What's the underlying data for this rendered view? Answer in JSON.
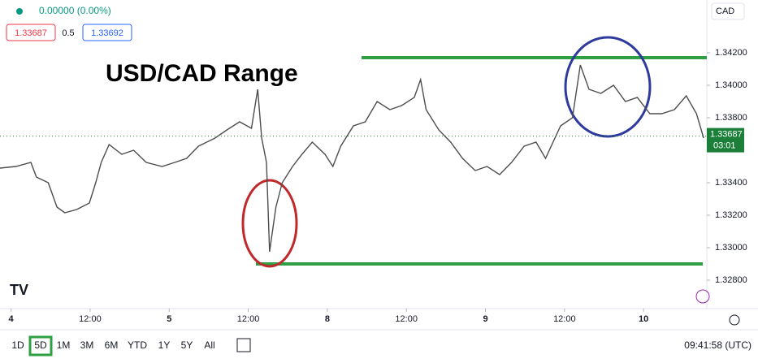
{
  "ui": {
    "change": "0.00000 (0.00%)",
    "bid": "1.33687",
    "spread": "0.5",
    "ask": "1.33692",
    "currency": "CAD",
    "countdown": "03:01",
    "timeframes": [
      "1D",
      "5D",
      "1M",
      "3M",
      "6M",
      "YTD",
      "1Y",
      "5Y",
      "All"
    ],
    "selected_timeframe": 1,
    "clock": "09:41:58 (UTC)"
  },
  "chart_data": {
    "type": "line",
    "title": "USD/CAD Range",
    "color": "#4d4d4d",
    "grid": false,
    "x": [
      -0.14,
      0.06,
      0.25,
      0.32,
      0.47,
      0.58,
      0.68,
      0.83,
      0.99,
      1.07,
      1.14,
      1.24,
      1.4,
      1.55,
      1.71,
      1.91,
      2.07,
      2.22,
      2.37,
      2.58,
      2.73,
      2.89,
      3.04,
      3.12,
      3.17,
      3.23,
      3.27,
      3.35,
      3.43,
      3.56,
      3.68,
      3.81,
      3.97,
      4.07,
      4.17,
      4.33,
      4.48,
      4.63,
      4.79,
      4.94,
      5.1,
      5.18,
      5.25,
      5.41,
      5.56,
      5.71,
      5.87,
      6.02,
      6.18,
      6.33,
      6.49,
      6.64,
      6.76,
      6.95,
      7.1,
      7.2,
      7.31,
      7.46,
      7.62,
      7.77,
      7.92,
      8.08,
      8.23,
      8.39,
      8.54,
      8.67,
      8.76
    ],
    "values": [
      1.3349,
      1.335,
      1.33525,
      1.33435,
      1.334,
      1.3325,
      1.33215,
      1.33235,
      1.33275,
      1.334,
      1.33525,
      1.33635,
      1.33575,
      1.336,
      1.33525,
      1.335,
      1.33525,
      1.3355,
      1.33625,
      1.33675,
      1.33725,
      1.33775,
      1.33735,
      1.33975,
      1.33675,
      1.33525,
      1.32975,
      1.3325,
      1.334,
      1.335,
      1.33575,
      1.3365,
      1.33575,
      1.335,
      1.33625,
      1.3375,
      1.33775,
      1.339,
      1.3385,
      1.33875,
      1.33925,
      1.34035,
      1.3385,
      1.33725,
      1.3365,
      1.3355,
      1.33475,
      1.335,
      1.3345,
      1.33525,
      1.33625,
      1.3365,
      1.3355,
      1.3375,
      1.338,
      1.34125,
      1.33975,
      1.3395,
      1.34,
      1.339,
      1.33925,
      1.33825,
      1.33825,
      1.3385,
      1.33935,
      1.33825,
      1.33675
    ],
    "current_price": 1.33687,
    "current_color": "#1b7f3a",
    "xlim": [
      -0.14,
      8.8
    ],
    "xticks": [
      {
        "value": 0,
        "label": "4"
      },
      {
        "value": 1,
        "label": "12:00"
      },
      {
        "value": 2,
        "label": "5"
      },
      {
        "value": 3,
        "label": "12:00"
      },
      {
        "value": 4,
        "label": "8"
      },
      {
        "value": 5,
        "label": "12:00"
      },
      {
        "value": 6,
        "label": "9"
      },
      {
        "value": 7,
        "label": "12:00"
      },
      {
        "value": 8,
        "label": "10"
      }
    ],
    "ylim": [
      1.32625,
      1.34525
    ],
    "yticks": [
      {
        "value": 1.328,
        "label": "1.32800"
      },
      {
        "value": 1.33,
        "label": "1.33000"
      },
      {
        "value": 1.332,
        "label": "1.33200"
      },
      {
        "value": 1.334,
        "label": "1.33400"
      },
      {
        "value": 1.338,
        "label": "1.33800"
      },
      {
        "value": 1.34,
        "label": "1.34000"
      },
      {
        "value": 1.342,
        "label": "1.34200"
      }
    ]
  }
}
